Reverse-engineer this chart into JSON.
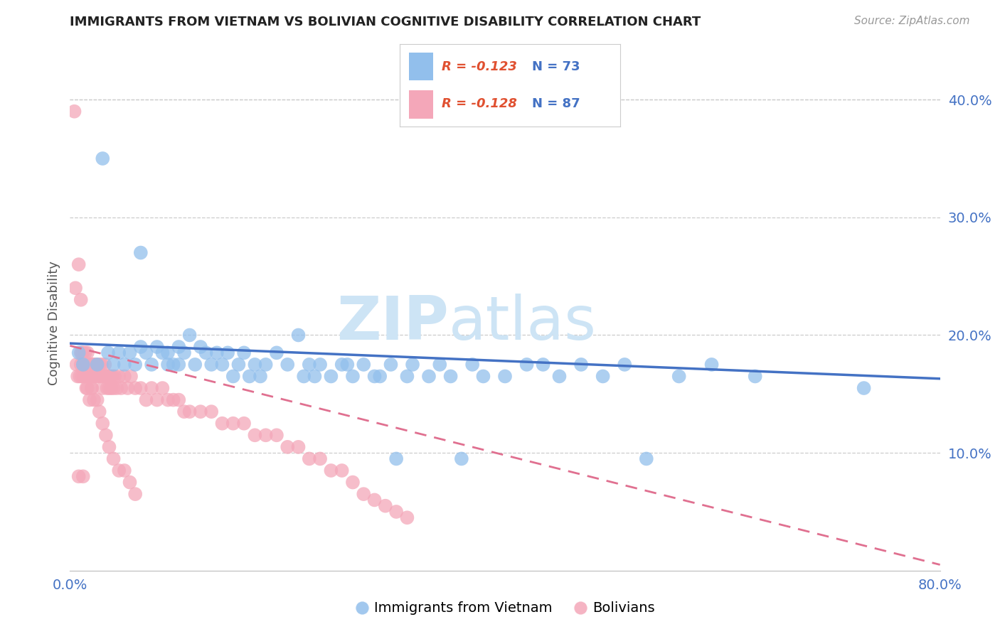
{
  "title": "IMMIGRANTS FROM VIETNAM VS BOLIVIAN COGNITIVE DISABILITY CORRELATION CHART",
  "source": "Source: ZipAtlas.com",
  "ylabel": "Cognitive Disability",
  "xlim": [
    0.0,
    0.8
  ],
  "ylim": [
    0.0,
    0.42
  ],
  "yticks_right": [
    0.1,
    0.2,
    0.3,
    0.4
  ],
  "ytick_right_labels": [
    "10.0%",
    "20.0%",
    "30.0%",
    "40.0%"
  ],
  "legend_R_blue": "R = -0.123",
  "legend_N_blue": "N = 73",
  "legend_R_pink": "R = -0.128",
  "legend_N_pink": "N = 87",
  "blue_color": "#92bfec",
  "pink_color": "#f4a7b9",
  "blue_line_color": "#4472c4",
  "pink_line_color": "#e07090",
  "watermark_zip": "ZIP",
  "watermark_atlas": "atlas",
  "blue_line_start_y": 0.193,
  "blue_line_end_y": 0.163,
  "pink_line_start_y": 0.191,
  "pink_line_end_y": 0.005,
  "vietnam_x": [
    0.008,
    0.012,
    0.025,
    0.03,
    0.035,
    0.04,
    0.045,
    0.05,
    0.055,
    0.06,
    0.065,
    0.065,
    0.07,
    0.075,
    0.08,
    0.085,
    0.09,
    0.09,
    0.095,
    0.1,
    0.1,
    0.105,
    0.11,
    0.115,
    0.12,
    0.125,
    0.13,
    0.135,
    0.14,
    0.145,
    0.15,
    0.155,
    0.16,
    0.165,
    0.17,
    0.175,
    0.18,
    0.19,
    0.2,
    0.21,
    0.215,
    0.22,
    0.225,
    0.23,
    0.24,
    0.25,
    0.255,
    0.26,
    0.27,
    0.28,
    0.285,
    0.295,
    0.3,
    0.31,
    0.315,
    0.33,
    0.34,
    0.35,
    0.36,
    0.37,
    0.38,
    0.4,
    0.42,
    0.435,
    0.45,
    0.47,
    0.49,
    0.51,
    0.53,
    0.56,
    0.59,
    0.63,
    0.73
  ],
  "vietnam_y": [
    0.185,
    0.175,
    0.175,
    0.35,
    0.185,
    0.175,
    0.185,
    0.175,
    0.185,
    0.175,
    0.27,
    0.19,
    0.185,
    0.175,
    0.19,
    0.185,
    0.175,
    0.185,
    0.175,
    0.19,
    0.175,
    0.185,
    0.2,
    0.175,
    0.19,
    0.185,
    0.175,
    0.185,
    0.175,
    0.185,
    0.165,
    0.175,
    0.185,
    0.165,
    0.175,
    0.165,
    0.175,
    0.185,
    0.175,
    0.2,
    0.165,
    0.175,
    0.165,
    0.175,
    0.165,
    0.175,
    0.175,
    0.165,
    0.175,
    0.165,
    0.165,
    0.175,
    0.095,
    0.165,
    0.175,
    0.165,
    0.175,
    0.165,
    0.095,
    0.175,
    0.165,
    0.165,
    0.175,
    0.175,
    0.165,
    0.175,
    0.165,
    0.175,
    0.095,
    0.165,
    0.175,
    0.165,
    0.155
  ],
  "bolivia_x": [
    0.004,
    0.006,
    0.007,
    0.008,
    0.009,
    0.01,
    0.01,
    0.011,
    0.011,
    0.012,
    0.012,
    0.013,
    0.013,
    0.014,
    0.014,
    0.015,
    0.015,
    0.016,
    0.016,
    0.017,
    0.017,
    0.018,
    0.018,
    0.019,
    0.019,
    0.02,
    0.02,
    0.021,
    0.021,
    0.022,
    0.022,
    0.023,
    0.024,
    0.025,
    0.026,
    0.027,
    0.028,
    0.029,
    0.03,
    0.031,
    0.032,
    0.033,
    0.034,
    0.035,
    0.036,
    0.037,
    0.038,
    0.039,
    0.04,
    0.041,
    0.043,
    0.045,
    0.047,
    0.05,
    0.053,
    0.056,
    0.06,
    0.065,
    0.07,
    0.075,
    0.08,
    0.085,
    0.09,
    0.095,
    0.1,
    0.105,
    0.11,
    0.12,
    0.13,
    0.14,
    0.15,
    0.16,
    0.17,
    0.18,
    0.19,
    0.2,
    0.21,
    0.22,
    0.23,
    0.24,
    0.25,
    0.26,
    0.27,
    0.28,
    0.29,
    0.3,
    0.31
  ],
  "bolivia_y": [
    0.39,
    0.175,
    0.165,
    0.08,
    0.165,
    0.185,
    0.175,
    0.165,
    0.185,
    0.175,
    0.185,
    0.165,
    0.175,
    0.185,
    0.165,
    0.175,
    0.155,
    0.185,
    0.165,
    0.175,
    0.165,
    0.175,
    0.165,
    0.175,
    0.165,
    0.175,
    0.155,
    0.175,
    0.165,
    0.175,
    0.165,
    0.175,
    0.165,
    0.175,
    0.165,
    0.175,
    0.165,
    0.175,
    0.155,
    0.165,
    0.175,
    0.165,
    0.155,
    0.165,
    0.155,
    0.165,
    0.155,
    0.165,
    0.155,
    0.165,
    0.155,
    0.165,
    0.155,
    0.165,
    0.155,
    0.165,
    0.155,
    0.155,
    0.145,
    0.155,
    0.145,
    0.155,
    0.145,
    0.145,
    0.145,
    0.135,
    0.135,
    0.135,
    0.135,
    0.125,
    0.125,
    0.125,
    0.115,
    0.115,
    0.115,
    0.105,
    0.105,
    0.095,
    0.095,
    0.085,
    0.085,
    0.075,
    0.065,
    0.06,
    0.055,
    0.05,
    0.045
  ],
  "bolivia_extra_x": [
    0.005,
    0.008,
    0.01,
    0.012,
    0.013,
    0.014,
    0.016,
    0.018,
    0.02,
    0.022,
    0.025,
    0.027,
    0.03,
    0.033,
    0.036,
    0.04,
    0.045,
    0.05,
    0.055,
    0.06
  ],
  "bolivia_extra_y": [
    0.24,
    0.26,
    0.23,
    0.08,
    0.175,
    0.165,
    0.155,
    0.145,
    0.155,
    0.145,
    0.145,
    0.135,
    0.125,
    0.115,
    0.105,
    0.095,
    0.085,
    0.085,
    0.075,
    0.065
  ]
}
